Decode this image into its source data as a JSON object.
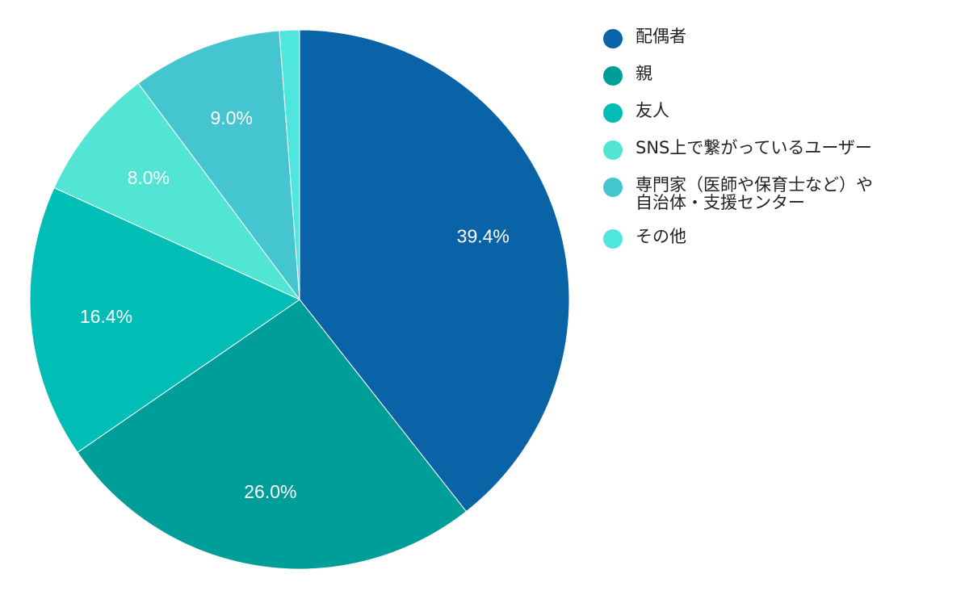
{
  "chart_data": {
    "type": "pie",
    "title": "",
    "start_angle_deg": 0,
    "direction": "clockwise",
    "legend_position": "right",
    "slices": [
      {
        "label": "配偶者",
        "value": 39.4,
        "value_label": "39.4%",
        "color": "#0a63a6"
      },
      {
        "label": "親",
        "value": 26.0,
        "value_label": "26.0%",
        "color": "#009e98"
      },
      {
        "label": "友人",
        "value": 16.4,
        "value_label": "16.4%",
        "color": "#00bdb6"
      },
      {
        "label": "SNS上で繋がっているユーザー",
        "value": 8.0,
        "value_label": "8.0%",
        "color": "#52e5d3"
      },
      {
        "label": "専門家（医師や保育士など）や\n自治体・支援センター",
        "value": 9.0,
        "value_label": "9.0%",
        "color": "#45c5cf"
      },
      {
        "label": "その他",
        "value": 1.2,
        "value_label": "",
        "color": "#4fe6e0"
      }
    ]
  }
}
